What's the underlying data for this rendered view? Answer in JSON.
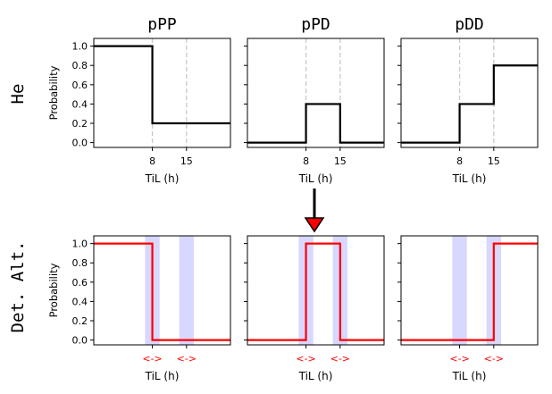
{
  "chart_data": [
    {
      "type": "line",
      "row_label": "He",
      "title": "pPP",
      "xlabel": "TiL (h)",
      "ylabel": "Probability",
      "xlim": [
        -4,
        24
      ],
      "ylim": [
        -0.05,
        1.08
      ],
      "xticks": [
        8,
        15
      ],
      "xtick_labels": [
        "8",
        "15"
      ],
      "yticks": [
        0.0,
        0.2,
        0.4,
        0.6,
        0.8,
        1.0
      ],
      "ytick_labels": [
        "0.0",
        "0.2",
        "0.4",
        "0.6",
        "0.8",
        "1.0"
      ],
      "vlines": [
        8,
        15
      ],
      "shaded_bands": [],
      "series": [
        {
          "color": "#000000",
          "x": [
            -4,
            8,
            8,
            24
          ],
          "y": [
            1.0,
            1.0,
            0.2,
            0.2
          ]
        }
      ]
    },
    {
      "type": "line",
      "row_label": "He",
      "title": "pPD",
      "xlabel": "TiL (h)",
      "ylabel": "",
      "xlim": [
        -4,
        24
      ],
      "ylim": [
        -0.05,
        1.08
      ],
      "xticks": [
        8,
        15
      ],
      "xtick_labels": [
        "8",
        "15"
      ],
      "yticks": [
        0.0,
        0.2,
        0.4,
        0.6,
        0.8,
        1.0
      ],
      "ytick_labels": [],
      "vlines": [
        8,
        15
      ],
      "shaded_bands": [],
      "series": [
        {
          "color": "#000000",
          "x": [
            -4,
            8,
            8,
            15,
            15,
            24
          ],
          "y": [
            0.0,
            0.0,
            0.4,
            0.4,
            0.0,
            0.0
          ]
        }
      ]
    },
    {
      "type": "line",
      "row_label": "He",
      "title": "pDD",
      "xlabel": "TiL (h)",
      "ylabel": "",
      "xlim": [
        -4,
        24
      ],
      "ylim": [
        -0.05,
        1.08
      ],
      "xticks": [
        8,
        15
      ],
      "xtick_labels": [
        "8",
        "15"
      ],
      "yticks": [
        0.0,
        0.2,
        0.4,
        0.6,
        0.8,
        1.0
      ],
      "ytick_labels": [],
      "vlines": [
        8,
        15
      ],
      "shaded_bands": [],
      "series": [
        {
          "color": "#000000",
          "x": [
            -4,
            8,
            8,
            15,
            15,
            24
          ],
          "y": [
            0.0,
            0.0,
            0.4,
            0.4,
            0.8,
            0.8
          ]
        }
      ]
    },
    {
      "type": "line",
      "row_label": "Det. Alt.",
      "title": "",
      "xlabel": "TiL (h)",
      "ylabel": "Probability",
      "xlim": [
        -4,
        24
      ],
      "ylim": [
        -0.05,
        1.08
      ],
      "xticks": [
        8,
        15
      ],
      "xtick_labels": [
        "<->",
        "<->"
      ],
      "yticks": [
        0.0,
        0.2,
        0.4,
        0.6,
        0.8,
        1.0
      ],
      "ytick_labels": [
        "0.0",
        "0.2",
        "0.4",
        "0.6",
        "0.8",
        "1.0"
      ],
      "vlines": [],
      "shaded_bands": [
        [
          6.5,
          9.5
        ],
        [
          13.5,
          16.5
        ]
      ],
      "series": [
        {
          "color": "#ff0000",
          "x": [
            -4,
            8,
            8,
            24
          ],
          "y": [
            1.0,
            1.0,
            0.0,
            0.0
          ]
        }
      ]
    },
    {
      "type": "line",
      "row_label": "Det. Alt.",
      "title": "",
      "xlabel": "TiL (h)",
      "ylabel": "",
      "xlim": [
        -4,
        24
      ],
      "ylim": [
        -0.05,
        1.08
      ],
      "xticks": [
        8,
        15
      ],
      "xtick_labels": [
        "<->",
        "<->"
      ],
      "yticks": [
        0.0,
        0.2,
        0.4,
        0.6,
        0.8,
        1.0
      ],
      "ytick_labels": [],
      "vlines": [],
      "shaded_bands": [
        [
          6.5,
          9.5
        ],
        [
          13.5,
          16.5
        ]
      ],
      "series": [
        {
          "color": "#ff0000",
          "x": [
            -4,
            8,
            8,
            15,
            15,
            24
          ],
          "y": [
            0.0,
            0.0,
            1.0,
            1.0,
            0.0,
            0.0
          ]
        }
      ]
    },
    {
      "type": "line",
      "row_label": "Det. Alt.",
      "title": "",
      "xlabel": "TiL (h)",
      "ylabel": "",
      "xlim": [
        -4,
        24
      ],
      "ylim": [
        -0.05,
        1.08
      ],
      "xticks": [
        8,
        15
      ],
      "xtick_labels": [
        "<->",
        "<->"
      ],
      "yticks": [
        0.0,
        0.2,
        0.4,
        0.6,
        0.8,
        1.0
      ],
      "ytick_labels": [],
      "vlines": [],
      "shaded_bands": [
        [
          6.5,
          9.5
        ],
        [
          13.5,
          16.5
        ]
      ],
      "series": [
        {
          "color": "#ff0000",
          "x": [
            -4,
            15,
            15,
            24
          ],
          "y": [
            0.0,
            0.0,
            1.0,
            1.0
          ]
        }
      ]
    }
  ],
  "row_labels": [
    "He",
    "Det. Alt."
  ],
  "colors": {
    "top_line": "#000000",
    "bottom_line": "#ff0000",
    "band": "#d8d8ff",
    "vline": "#c8c8c8",
    "arrow_fill": "#ff0000"
  }
}
